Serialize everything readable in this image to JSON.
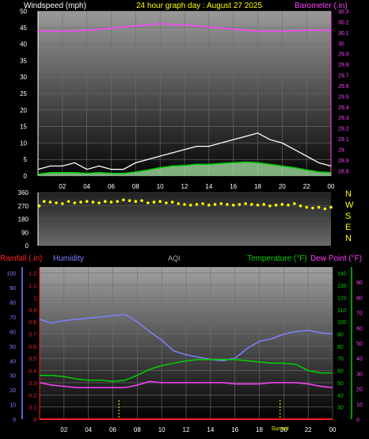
{
  "header": {
    "left": "Windspeed (mph)",
    "center": "24 hour graph day : August 27 2025",
    "right": "Barometer (.in)"
  },
  "middle_header": {
    "rainfall": "Rainfall (.in)",
    "humidity": "Humidity",
    "aqi": "AQI",
    "temperature": "Temperature (°F)",
    "dewpoint": "Dew Point (°F)"
  },
  "colors": {
    "wind": "#ffffff",
    "wind_avg": "#00d000",
    "wind_fill": "#a8e8a8",
    "barometer": "#ff40ff",
    "direction": "#ffff00",
    "humidity": "#8080ff",
    "temperature": "#00d000",
    "dewpoint": "#ff40ff",
    "rainfall": "#ff2020"
  },
  "chart_data": [
    {
      "type": "line",
      "name": "wind-baro",
      "x_ticks": [
        "02",
        "04",
        "06",
        "08",
        "10",
        "12",
        "14",
        "16",
        "18",
        "20",
        "22",
        "00"
      ],
      "y_left_ticks": [
        "0",
        "5",
        "10",
        "15",
        "20",
        "25",
        "30",
        "35",
        "40",
        "45",
        "50"
      ],
      "y_left_range": [
        0,
        50
      ],
      "y_right_ticks": [
        "28.8",
        "28.9",
        "29",
        "29.1",
        "29.2",
        "29.3",
        "29.4",
        "29.5",
        "29.6",
        "29.7",
        "29.8",
        "29.9",
        "30",
        "30.1",
        "30.2",
        "30.3"
      ],
      "y_right_range": [
        28.75,
        30.3
      ],
      "series": [
        {
          "name": "Windspeed",
          "axis": "left",
          "x": [
            0,
            1,
            2,
            3,
            4,
            5,
            6,
            7,
            8,
            9,
            10,
            11,
            12,
            13,
            14,
            15,
            16,
            17,
            18,
            19,
            20,
            21,
            22,
            23,
            24
          ],
          "values": [
            2,
            3,
            3,
            4,
            2,
            3,
            2,
            2,
            4,
            5,
            6,
            7,
            8,
            9,
            9,
            10,
            11,
            12,
            13,
            11,
            10,
            8,
            6,
            4,
            3
          ]
        },
        {
          "name": "Wind Avg",
          "axis": "left",
          "x": [
            0,
            1,
            2,
            3,
            4,
            5,
            6,
            7,
            8,
            9,
            10,
            11,
            12,
            13,
            14,
            15,
            16,
            17,
            18,
            19,
            20,
            21,
            22,
            23,
            24
          ],
          "values": [
            0.5,
            1,
            1,
            1,
            0.8,
            1,
            0.8,
            0.8,
            1.2,
            1.8,
            2.5,
            3,
            3.2,
            3.5,
            3.5,
            3.8,
            4,
            4.2,
            4,
            3.5,
            3,
            2.5,
            1.8,
            1.2,
            1
          ]
        },
        {
          "name": "Barometer",
          "axis": "right",
          "x": [
            0,
            2,
            4,
            6,
            8,
            10,
            12,
            14,
            16,
            18,
            20,
            22,
            24
          ],
          "values": [
            30.11,
            30.11,
            30.12,
            30.14,
            30.16,
            30.18,
            30.17,
            30.15,
            30.13,
            30.11,
            30.11,
            30.12,
            30.12
          ]
        }
      ]
    },
    {
      "type": "scatter",
      "name": "wind-direction",
      "y_ticks": [
        "360",
        "270",
        "180",
        "90",
        "0"
      ],
      "y_range": [
        0,
        360
      ],
      "compass": [
        "N",
        "W",
        "S",
        "E",
        "N"
      ],
      "series": [
        {
          "name": "Direction",
          "x": [
            0.1,
            0.5,
            1,
            1.5,
            2,
            2.5,
            3,
            3.5,
            4,
            4.5,
            5,
            5.5,
            6,
            6.5,
            7,
            7.5,
            8,
            8.5,
            9,
            9.5,
            10,
            10.5,
            11,
            11.5,
            12,
            12.5,
            13,
            13.5,
            14,
            14.5,
            15,
            15.5,
            16,
            16.5,
            17,
            17.5,
            18,
            18.5,
            19,
            19.5,
            20,
            20.5,
            21,
            21.5,
            22,
            22.5,
            23,
            23.5,
            24
          ],
          "values": [
            270,
            300,
            295,
            290,
            285,
            300,
            290,
            295,
            300,
            295,
            290,
            300,
            295,
            300,
            310,
            305,
            300,
            305,
            290,
            295,
            300,
            290,
            295,
            285,
            280,
            275,
            280,
            285,
            275,
            280,
            285,
            280,
            275,
            280,
            285,
            280,
            275,
            280,
            270,
            275,
            280,
            275,
            285,
            270,
            260,
            255,
            260,
            250,
            260
          ]
        }
      ]
    },
    {
      "type": "line",
      "name": "temp-hum",
      "x_ticks": [
        "02",
        "04",
        "06",
        "08",
        "10",
        "12",
        "14",
        "16",
        "18",
        "20",
        "22",
        "00"
      ],
      "humidity_ticks": [
        "0",
        "10",
        "20",
        "30",
        "40",
        "50",
        "60",
        "70",
        "80",
        "90",
        "100"
      ],
      "rain_ticks": [
        "0",
        "0.1",
        "0.2",
        "0.3",
        "0.4",
        "0.5",
        "0.6",
        "0.7",
        "0.8",
        "0.9",
        "1",
        "1.1",
        "1.2"
      ],
      "temp_ticks": [
        "30",
        "40",
        "50",
        "60",
        "70",
        "80",
        "90",
        "100",
        "110",
        "120",
        "130",
        "140"
      ],
      "rain_ticks_right": [
        "0",
        "10",
        "20",
        "30",
        "40",
        "50",
        "60",
        "70",
        "80",
        "90"
      ],
      "rain_range": [
        0,
        1.25
      ],
      "temp_range": [
        20,
        145
      ],
      "annotations": [
        "Sunset"
      ],
      "series": [
        {
          "name": "Humidity",
          "axis": "rain",
          "x": [
            0,
            1,
            2,
            3,
            4,
            5,
            6,
            7,
            8,
            9,
            10,
            11,
            12,
            13,
            14,
            15,
            16,
            17,
            18,
            19,
            20,
            21,
            22,
            23,
            24
          ],
          "values": [
            0.82,
            0.79,
            0.81,
            0.82,
            0.83,
            0.84,
            0.85,
            0.86,
            0.8,
            0.72,
            0.65,
            0.56,
            0.53,
            0.51,
            0.49,
            0.48,
            0.5,
            0.58,
            0.64,
            0.66,
            0.7,
            0.72,
            0.73,
            0.71,
            0.7
          ]
        },
        {
          "name": "Temperature",
          "axis": "temp",
          "x": [
            0,
            1,
            2,
            3,
            4,
            5,
            6,
            7,
            8,
            9,
            10,
            11,
            12,
            13,
            14,
            15,
            16,
            17,
            18,
            19,
            20,
            21,
            22,
            23,
            24
          ],
          "values": [
            56,
            56,
            55,
            53,
            52,
            52,
            51,
            52,
            56,
            61,
            64,
            66,
            68,
            69,
            69,
            69,
            69,
            68,
            67,
            66,
            66,
            65,
            60,
            58,
            58
          ]
        },
        {
          "name": "Dew Point",
          "axis": "temp",
          "x": [
            0,
            1,
            2,
            3,
            4,
            5,
            6,
            7,
            8,
            9,
            10,
            11,
            12,
            13,
            14,
            15,
            16,
            17,
            18,
            19,
            20,
            21,
            22,
            23,
            24
          ],
          "values": [
            50,
            48,
            47,
            46,
            46,
            46,
            46,
            46,
            48,
            51,
            50,
            50,
            50,
            50,
            50,
            50,
            49,
            49,
            49,
            50,
            50,
            50,
            49,
            47,
            46
          ]
        },
        {
          "name": "Rainfall",
          "axis": "rain",
          "x": [
            0,
            24
          ],
          "values": [
            0,
            0
          ]
        }
      ]
    }
  ]
}
